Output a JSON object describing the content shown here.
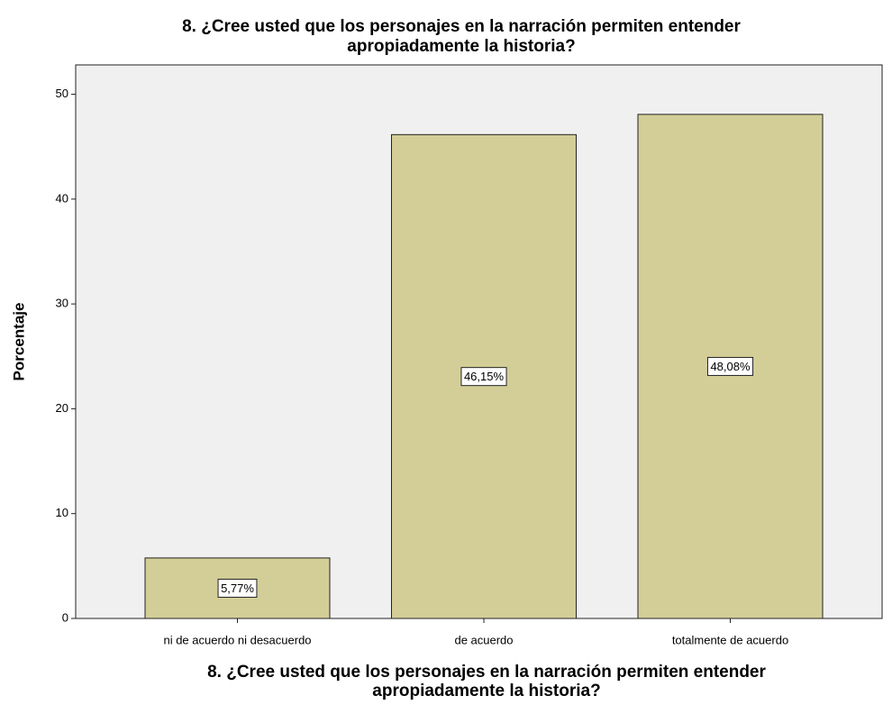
{
  "chart_data": {
    "type": "bar",
    "title": [
      "8. ¿Cree usted que los personajes en la narración permiten entender",
      "apropiadamente la historia?"
    ],
    "x_label": [
      "8. ¿Cree usted que los personajes en la narración permiten entender",
      "apropiadamente la historia?"
    ],
    "y_label": "Porcentaje",
    "categories": [
      "ni de acuerdo ni desacuerdo",
      "de acuerdo",
      "totalmente de acuerdo"
    ],
    "values": [
      5.77,
      46.15,
      48.08
    ],
    "value_labels": [
      "5,77%",
      "46,15%",
      "48,08%"
    ],
    "color": "#d3ce97",
    "ylim": [
      0,
      52.8
    ],
    "yticks": [
      0,
      10,
      20,
      30,
      40,
      50
    ],
    "grid": false
  }
}
